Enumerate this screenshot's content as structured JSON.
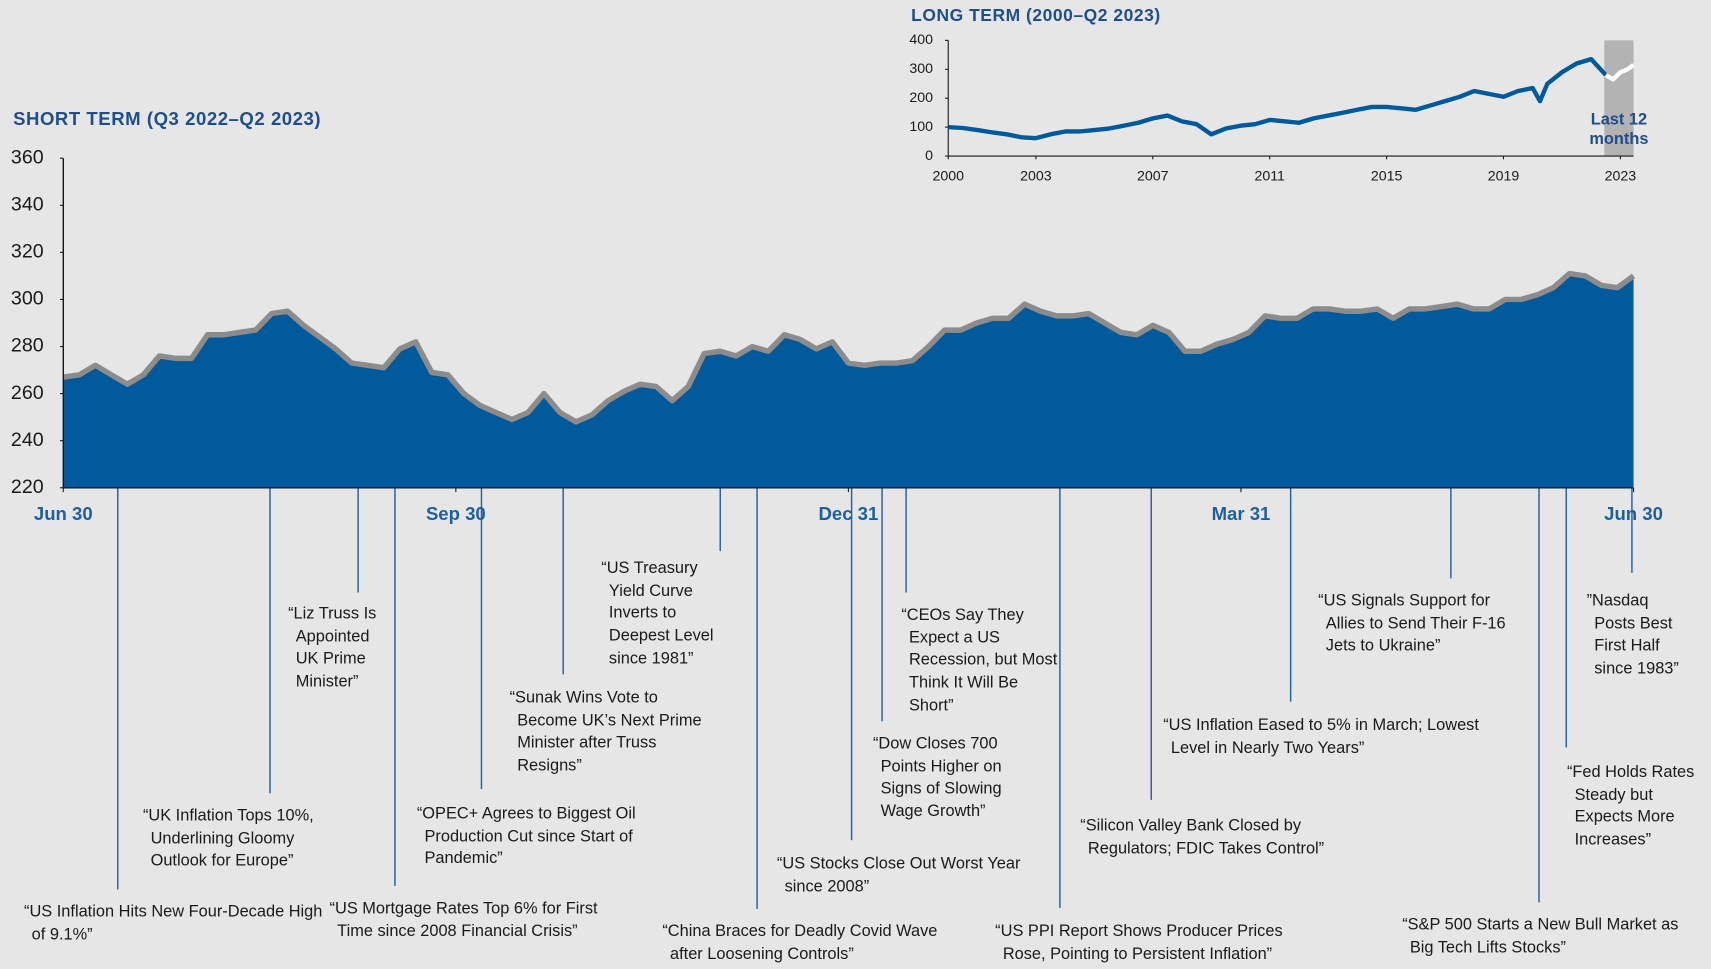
{
  "chart_data": [
    {
      "type": "area",
      "title": "SHORT TERM (Q3 2022–Q2 2023)",
      "values": [
        267,
        268,
        272,
        268,
        264,
        268,
        276,
        275,
        275,
        285,
        285,
        286,
        287,
        294,
        295,
        289,
        284,
        279,
        273,
        272,
        271,
        279,
        282,
        269,
        268,
        260,
        255,
        252,
        249,
        252,
        260,
        252,
        248,
        251,
        257,
        261,
        264,
        263,
        257,
        263,
        277,
        278,
        276,
        280,
        278,
        285,
        283,
        279,
        282,
        273,
        272,
        273,
        273,
        274,
        280,
        287,
        287,
        290,
        292,
        292,
        298,
        295,
        293,
        293,
        294,
        290,
        286,
        285,
        289,
        286,
        278,
        278,
        281,
        283,
        286,
        293,
        292,
        292,
        296,
        296,
        295,
        295,
        296,
        292,
        296,
        296,
        297,
        298,
        296,
        296,
        300,
        300,
        302,
        305,
        311,
        310,
        306,
        305,
        310
      ],
      "color": "#005a9c",
      "outline_color": "#8c8c8c",
      "xlim": [
        0,
        98
      ],
      "xticks": [
        {
          "value": 0,
          "label": "Jun 30"
        },
        {
          "value": 24.5,
          "label": "Sep 30"
        },
        {
          "value": 49,
          "label": "Dec 31"
        },
        {
          "value": 73.5,
          "label": "Mar 31"
        },
        {
          "value": 98,
          "label": "Jun 30"
        }
      ],
      "ylim": [
        220,
        360
      ],
      "yticks": [
        220,
        240,
        260,
        280,
        300,
        320,
        340,
        360
      ],
      "annotations": [
        {
          "text": "“US Inflation Hits New Four-Decade High of 9.1%”",
          "x": 3.4
        },
        {
          "text": "“UK Inflation Tops 10%, Underlining Gloomy Outlook for Europe”",
          "x": 12.9
        },
        {
          "text": "“Liz Truss Is Appointed UK Prime Minister”",
          "x": 18.4
        },
        {
          "text": "“US Mortgage Rates Top 6% for First Time since 2008 Financial Crisis”",
          "x": 20.7
        },
        {
          "text": "“OPEC+ Agrees to Biggest Oil Production Cut since Start of Pandemic”",
          "x": 26.1
        },
        {
          "text": "“Sunak Wins Vote to Become UK’s Next Prime Minister after Truss Resigns”",
          "x": 31.2
        },
        {
          "text": "“US Treasury Yield Curve Inverts to Deepest Level since 1981”",
          "x": 41
        },
        {
          "text": "“China Braces for Deadly Covid Wave after Loosening Controls”",
          "x": 43.3
        },
        {
          "text": "“US Stocks Close Out Worst Year since 2008”",
          "x": 49.2
        },
        {
          "text": "“Dow Closes 700 Points Higher on Signs of Slowing Wage Growth”",
          "x": 51.1
        },
        {
          "text": "“CEOs Say They Expect a US Recession, but Most Think It Will Be Short”",
          "x": 52.6
        },
        {
          "text": "“US PPI Report Shows Producer Prices Rose, Pointing to Persistent Inflation”",
          "x": 62.2
        },
        {
          "text": "“Silicon Valley Bank Closed by Regulators; FDIC Takes Control”",
          "x": 67.9
        },
        {
          "text": "“US Inflation Eased to 5% in March; Lowest Level in Nearly Two Years”",
          "x": 76.6
        },
        {
          "text": "“US Signals Support for Allies to Send Their F-16 Jets to Ukraine”",
          "x": 86.6
        },
        {
          "text": "“S&P 500 Starts a New Bull Market as Big Tech Lifts Stocks”",
          "x": 92.1
        },
        {
          "text": "“Fed Holds Rates Steady but Expects More Increases”",
          "x": 93.8
        },
        {
          "text": "”Nasdaq Posts Best First Half since 1983”",
          "x": 97.9
        }
      ]
    },
    {
      "type": "line",
      "title": "LONG TERM (2000–Q2 2023)",
      "series": [
        {
          "color": "#005a9c",
          "x": [
            2000,
            2000.5,
            2001,
            2001.5,
            2002,
            2002.5,
            2003,
            2003.5,
            2004,
            2004.5,
            2005,
            2005.5,
            2006,
            2006.5,
            2007,
            2007.5,
            2008,
            2008.5,
            2009,
            2009.5,
            2010,
            2010.5,
            2011,
            2011.5,
            2012,
            2012.5,
            2013,
            2013.5,
            2014,
            2014.5,
            2015,
            2015.5,
            2016,
            2016.5,
            2017,
            2017.5,
            2018,
            2018.5,
            2019,
            2019.5,
            2020,
            2020.25,
            2020.5,
            2021,
            2021.5,
            2022,
            2022.5
          ],
          "values": [
            100,
            97,
            90,
            82,
            75,
            65,
            62,
            75,
            85,
            85,
            90,
            95,
            105,
            115,
            130,
            140,
            120,
            110,
            75,
            95,
            105,
            110,
            125,
            120,
            115,
            130,
            140,
            150,
            160,
            170,
            170,
            165,
            160,
            175,
            190,
            205,
            225,
            215,
            205,
            225,
            235,
            190,
            250,
            290,
            320,
            335,
            280
          ]
        },
        {
          "color": "#ffffff",
          "x": [
            2022.5,
            2022.75,
            2023,
            2023.25,
            2023.45
          ],
          "values": [
            280,
            265,
            290,
            300,
            315
          ]
        }
      ],
      "xlim": [
        2000,
        2023.45
      ],
      "xticks": [
        2000,
        2003,
        2007,
        2011,
        2015,
        2019,
        2023
      ],
      "ylim": [
        0,
        400
      ],
      "yticks": [
        0,
        100,
        200,
        300,
        400
      ],
      "highlight": {
        "range": [
          2022.45,
          2023.45
        ],
        "label": "Last 12 months",
        "color": "#b3b3b3"
      }
    }
  ]
}
